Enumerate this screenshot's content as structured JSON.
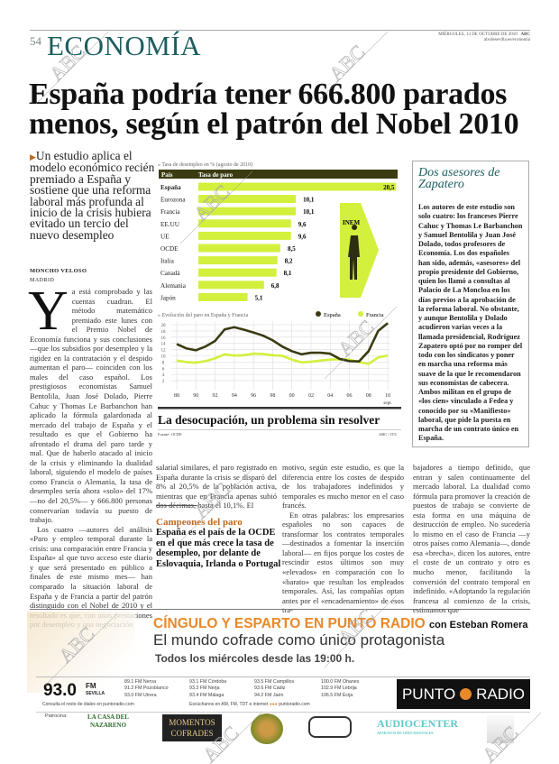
{
  "header": {
    "page_number": "54",
    "section": "ECONOMÍA",
    "date": "MIÉRCOLES, 13 DE OCTUBRE DE 2010",
    "paper": "ABC",
    "url": "abcdesevilla.es/economia"
  },
  "watermark": "ABC",
  "article": {
    "headline": "España podría tener 666.800 parados menos, según el patrón del Nobel 2010",
    "lead": "Un estudio aplica el modelo económico recién premiado a España y sostiene que una reforma laboral más profunda al inicio de la crisis hubiera evitado un tercio del nuevo desempleo",
    "author": "MONCHO VELOSO",
    "city": "MADRID",
    "dropcap": "Y",
    "col1_p1": "a está comprobado y las cuentas cuadran. El método matemático premiado este lunes con el Premio Nobel de Economía funciona y sus conclusiones —que los subsidios por desempleo y la rigidez en la contratación y el despido aumentan el paro— coinciden con los males del caso español. Los prestigiosos economistas Samuel Bentolila, Juan José Dolado, Pierre Cahuc y Thomas Le Barbanchon han aplicado la fórmula galardonada al mercado del trabajo de España y el resultado es que el Gobierno ha afrontado el drama del paro tarde y mal. Que de haberlo atacado al inicio de la crisis y eliminando la dualidad laboral, siguiendo el modelo de países como Francia o Alemania, la tasa de desempleo sería ahora «solo» del 17% —no del 20,5%— y 666.800 personas conservarían todavía su puesto de trabajo.",
    "col1_p2": "Los cuatro —autores del análisis «Paro y empleo temporal durante la crisis: una comparación entre Francia y España» al que tuvo acceso este diario y que será presentado en público a finales de este mismo mes— han comparado la situación laboral de España y de Francia a partir del patrón distinguido con el Nobel de 2010 y el resultado es que, con unas prestaciones por desempleo y una negociación",
    "col2_p1": "salarial similares, el paro registrado en España durante la crisis se disparó del 8% al 20,5% de la población activa, mientras que en Francia apenas subió dos décimas, hasta el 10,1%. El",
    "col3_p1": "motivo, según este estudio, es que la diferencia entre los costes de despido de los trabajadores indefinidos y temporales es mucho menor en el caso francés.",
    "col3_p2": "En otras palabras: los empresarios españoles no son capaces de transformar los contratos temporales —destinados a fomentar la inserción laboral— en fijos porque los costes de rescindir estos últimos son muy «elevados» en comparación con lo «barato» que resultan los empleados temporales. Así, las compañías optan antes por el «encadenamiento» de esos tra-",
    "col4_p1": "bajadores a tiempo definido, que entran y salen continuamente del mercado laboral. La dualidad como fórmula para promover la creación de puestos de trabajo se convierte de esta forma en una máquina de destrucción de empleo. No sucedería lo mismo en el caso de Francia —y otros países como Alemania—, donde esa «brecha», dicen los autores, entre el coste de un contrato y otro es mucho menor, facilitando la conversión del contrato temporal en indefinido. «Adoptando la regulación francesa al comienzo de la crisis, estimamos que"
  },
  "pullquote": {
    "kicker": "Campeones del paro",
    "text": "España es el país de la OCDE en el que más crece la tasa de desempleo, por delante de Eslovaquia, Irlanda o Portugal"
  },
  "sidebar": {
    "title": "Dos asesores de Zapatero",
    "text": "Los autores de este estudio son solo cuatro: los franceses Pierre Cahuc y Thomas Le Barbanchon y Samuel Bentolila y Juan José Dolado, todos profesores de Economía. Los dos españoles han sido, además, «asesores» del propio presidente del Gobierno, quien los llamó a consultas al Palacio de La Moncloa en los días previos a la aprobación de la reforma laboral. No obstante, y aunque Bentolila y Dolado acudieron varias veces a la llamada presidencial, Rodríguez Zapatero optó por no romper del todo con los sindicatos y poner en marcha una reforma más suave de la que le recomendaron sus economistas de cabecera. Ambos militan en el grupo de «los cien» vinculado a Fedea y conocido por su «Manifiesto» laboral, que pide la puesta en marcha de un contrato único en España."
  },
  "graphic": {
    "title": "La desocupación, un problema sin resolver",
    "source": "Fuente: OCDE",
    "credit": "ABC / JTS",
    "badge": "INEM"
  },
  "chart_data": [
    {
      "type": "bar",
      "title": "» Tasa de desempleo en % (agosto de 2010)",
      "header": [
        "País",
        "Tasa de paro"
      ],
      "categories": [
        "España",
        "Eurozona",
        "Francia",
        "EE.UU",
        "UE",
        "OCDE",
        "Italia",
        "Canadá",
        "Alemania",
        "Japón"
      ],
      "values": [
        20.5,
        10.1,
        10.1,
        9.6,
        9.6,
        8.5,
        8.2,
        8.1,
        6.8,
        5.1
      ],
      "value_labels": [
        "20,5",
        "10,1",
        "10,1",
        "9,6",
        "9,6",
        "8,5",
        "8,2",
        "8,1",
        "6,8",
        "5,1"
      ],
      "colors": {
        "bar": "#d2f03c",
        "header": "#3b3b12"
      }
    },
    {
      "type": "line",
      "title": "» Evolución del paro en España y Francia",
      "x": [
        1988,
        1989,
        1990,
        1991,
        1992,
        1993,
        1994,
        1995,
        1996,
        1997,
        1998,
        1999,
        2000,
        2001,
        2002,
        2003,
        2004,
        2005,
        2006,
        2007,
        2008,
        2009,
        2010
      ],
      "x_ticks": [
        "88",
        "90",
        "92",
        "94",
        "96",
        "98",
        "00",
        "02",
        "04",
        "06",
        "08",
        "10"
      ],
      "x_note": "sept.",
      "y_ticks": [
        2,
        4,
        6,
        8,
        10,
        12,
        14,
        16,
        18,
        20
      ],
      "ylim": [
        0,
        21
      ],
      "grid": true,
      "legend": "top-right",
      "series": [
        {
          "name": "España",
          "color": "#3b3b12",
          "values": [
            13.8,
            12.4,
            11.8,
            13,
            14.8,
            18.5,
            19.2,
            18.4,
            17.5,
            16.5,
            15,
            13,
            11.5,
            10.5,
            11,
            11,
            10.7,
            9,
            8.3,
            8.2,
            11.5,
            18,
            20.5
          ]
        },
        {
          "name": "Francia",
          "color": "#d2f03c",
          "values": [
            8.5,
            8,
            7.8,
            8.3,
            9.2,
            10.5,
            10.1,
            10.2,
            10.7,
            10.6,
            10.2,
            10,
            8.8,
            7.9,
            8.1,
            8.5,
            8.8,
            8.9,
            8.8,
            8,
            7.4,
            9.5,
            10.1
          ]
        }
      ]
    }
  ],
  "ad": {
    "line1": "CÍNGULO Y ESPARTO EN PUNTO RADIO",
    "line1_with": "con Esteban Romera",
    "line2": "El mundo cofrade como único protagonista",
    "line3": "Todos los miércoles desde las 19:00 h.",
    "main_freq": "93.0",
    "main_band": "FM",
    "main_city": "SEVILLA",
    "freqs": [
      [
        "89.1 FM Nerva",
        "91.2 FM Pozoblanco",
        "93.0 FM Utrera"
      ],
      [
        "93.1 FM Córdoba",
        "93.3 FM Nerja",
        "93.4 FM Málaga"
      ],
      [
        "93.5 FM Campillos",
        "93.6 FM Cádiz",
        "94.2 FM Jaén"
      ],
      [
        "100.0 FM Ohanes",
        "102.9 FM Lebrija",
        "106.5 FM Écija"
      ]
    ],
    "consult": "Consulta el resto de diales en puntoradio.com",
    "listen": "Escúchanos en AM, FM, TDT e internet",
    "listen_url": "puntoradio.com",
    "brand_left": "PUNTO",
    "brand_right": "RADIO",
    "sponsors_label": "Patrocina:",
    "sponsors": [
      "LA CASA DEL NAZARENO",
      "MOMENTOS COFRADES",
      "AUDIOCENTER"
    ],
    "sponsor_sub": "APARATOS DE OÍDO DIGITALES",
    "colors": {
      "accent": "#e8892a"
    }
  }
}
